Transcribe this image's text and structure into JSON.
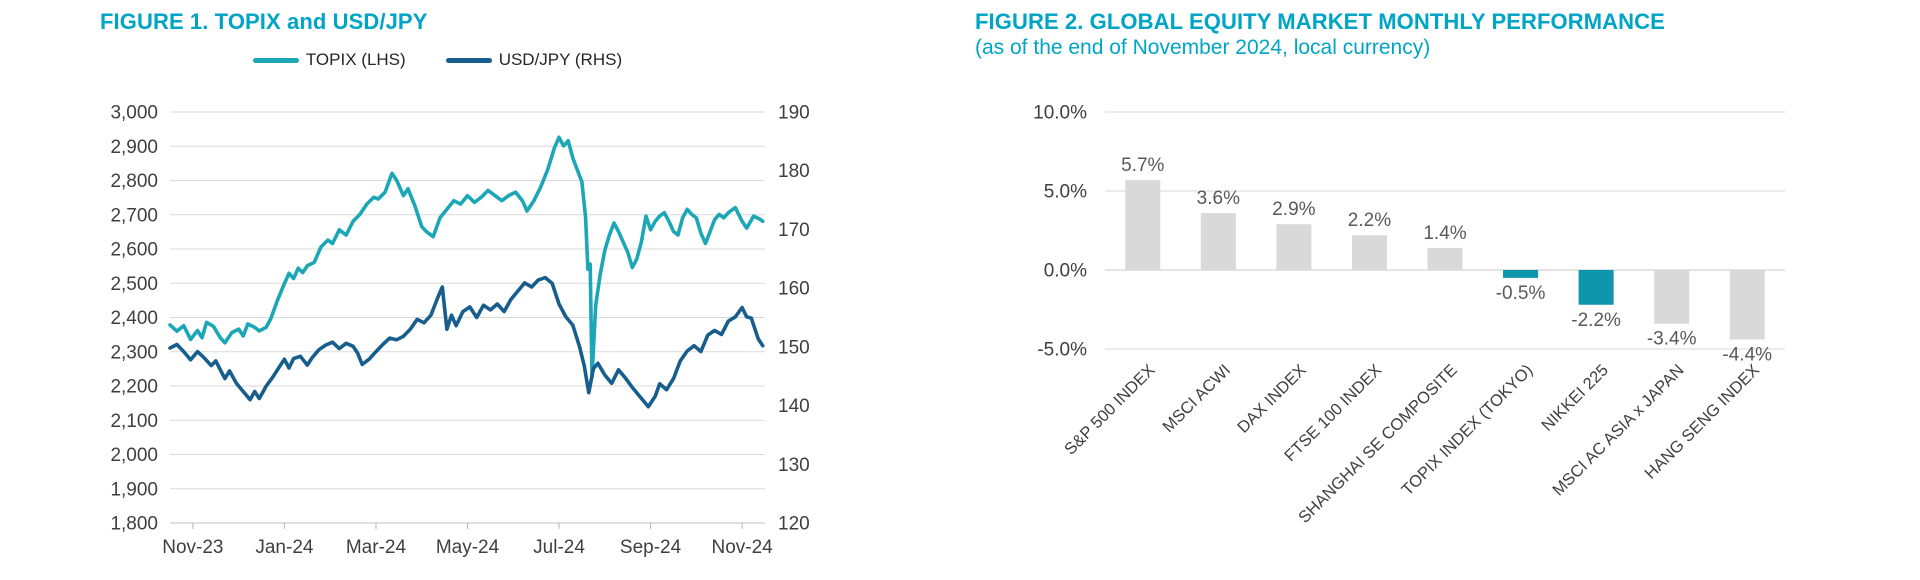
{
  "figure1": {
    "title": "FIGURE 1. TOPIX and USD/JPY",
    "legend": [
      {
        "label": "TOPIX (LHS)",
        "color": "#1CA7B6"
      },
      {
        "label": "USD/JPY (RHS)",
        "color": "#175E8D"
      }
    ]
  },
  "figure2": {
    "title": "FIGURE 2. GLOBAL EQUITY MARKET MONTHLY PERFORMANCE",
    "subtitle": "(as of the end of November 2024, local currency)"
  },
  "colors": {
    "accent_title_teal": "#00A5C6",
    "topix_line": "#1CA7B6",
    "usdjpy_line": "#175E8D",
    "bar_gray": "#D9D9D9",
    "bar_teal": "#0E96AC",
    "grid": "#DADADA",
    "axis_line": "#C2C2C2",
    "tick_text": "#3F3F3F",
    "value_label_text": "#595959"
  },
  "chart_data": [
    {
      "type": "line",
      "title": "FIGURE 1. TOPIX and USD/JPY",
      "grid": true,
      "legend_position": "top",
      "x_domain": [
        0,
        13
      ],
      "x_ticks": [
        "Nov-23",
        "Jan-24",
        "Mar-24",
        "May-24",
        "Jul-24",
        "Sep-24",
        "Nov-24"
      ],
      "x_tick_positions": [
        0.5,
        2.5,
        4.5,
        6.5,
        8.5,
        10.5,
        12.5
      ],
      "left_axis": {
        "name": "TOPIX",
        "min": 1800,
        "max": 3000,
        "step": 100,
        "tick_labels": [
          "1,800",
          "1,900",
          "2,000",
          "2,100",
          "2,200",
          "2,300",
          "2,400",
          "2,500",
          "2,600",
          "2,700",
          "2,800",
          "2,900",
          "3,000"
        ]
      },
      "right_axis": {
        "name": "USD/JPY",
        "min": 120,
        "max": 190,
        "step": 10,
        "tick_labels": [
          "120",
          "130",
          "140",
          "150",
          "160",
          "170",
          "180",
          "190"
        ]
      },
      "series": [
        {
          "name": "TOPIX (LHS)",
          "axis": "left",
          "color": "#1CA7B6",
          "points": [
            [
              0,
              2378
            ],
            [
              0.15,
              2360
            ],
            [
              0.3,
              2376
            ],
            [
              0.45,
              2336
            ],
            [
              0.6,
              2362
            ],
            [
              0.7,
              2341
            ],
            [
              0.8,
              2386
            ],
            [
              0.95,
              2374
            ],
            [
              1.1,
              2341
            ],
            [
              1.2,
              2326
            ],
            [
              1.35,
              2356
            ],
            [
              1.5,
              2366
            ],
            [
              1.6,
              2346
            ],
            [
              1.7,
              2381
            ],
            [
              1.85,
              2371
            ],
            [
              1.95,
              2361
            ],
            [
              2.1,
              2371
            ],
            [
              2.2,
              2396
            ],
            [
              2.35,
              2451
            ],
            [
              2.5,
              2499
            ],
            [
              2.6,
              2529
            ],
            [
              2.7,
              2514
            ],
            [
              2.8,
              2544
            ],
            [
              2.9,
              2531
            ],
            [
              3.0,
              2551
            ],
            [
              3.15,
              2561
            ],
            [
              3.3,
              2606
            ],
            [
              3.45,
              2626
            ],
            [
              3.55,
              2616
            ],
            [
              3.7,
              2656
            ],
            [
              3.85,
              2641
            ],
            [
              4.0,
              2681
            ],
            [
              4.15,
              2701
            ],
            [
              4.3,
              2731
            ],
            [
              4.45,
              2751
            ],
            [
              4.55,
              2746
            ],
            [
              4.7,
              2766
            ],
            [
              4.85,
              2821
            ],
            [
              4.95,
              2801
            ],
            [
              5.1,
              2756
            ],
            [
              5.2,
              2776
            ],
            [
              5.35,
              2726
            ],
            [
              5.5,
              2666
            ],
            [
              5.6,
              2651
            ],
            [
              5.75,
              2636
            ],
            [
              5.9,
              2691
            ],
            [
              6.05,
              2716
            ],
            [
              6.2,
              2741
            ],
            [
              6.35,
              2731
            ],
            [
              6.5,
              2756
            ],
            [
              6.65,
              2736
            ],
            [
              6.8,
              2751
            ],
            [
              6.95,
              2771
            ],
            [
              7.1,
              2756
            ],
            [
              7.25,
              2741
            ],
            [
              7.4,
              2756
            ],
            [
              7.55,
              2766
            ],
            [
              7.7,
              2741
            ],
            [
              7.8,
              2711
            ],
            [
              7.95,
              2741
            ],
            [
              8.1,
              2781
            ],
            [
              8.25,
              2831
            ],
            [
              8.4,
              2896
            ],
            [
              8.5,
              2926
            ],
            [
              8.6,
              2901
            ],
            [
              8.7,
              2916
            ],
            [
              8.8,
              2866
            ],
            [
              8.9,
              2831
            ],
            [
              9.0,
              2796
            ],
            [
              9.08,
              2691
            ],
            [
              9.13,
              2541
            ],
            [
              9.18,
              2556
            ],
            [
              9.22,
              2227
            ],
            [
              9.3,
              2436
            ],
            [
              9.4,
              2526
            ],
            [
              9.5,
              2596
            ],
            [
              9.6,
              2641
            ],
            [
              9.7,
              2676
            ],
            [
              9.8,
              2651
            ],
            [
              9.9,
              2621
            ],
            [
              10.0,
              2591
            ],
            [
              10.1,
              2546
            ],
            [
              10.2,
              2571
            ],
            [
              10.3,
              2621
            ],
            [
              10.4,
              2696
            ],
            [
              10.5,
              2656
            ],
            [
              10.6,
              2681
            ],
            [
              10.7,
              2696
            ],
            [
              10.8,
              2706
            ],
            [
              10.9,
              2681
            ],
            [
              11.0,
              2651
            ],
            [
              11.1,
              2641
            ],
            [
              11.2,
              2691
            ],
            [
              11.3,
              2716
            ],
            [
              11.4,
              2701
            ],
            [
              11.5,
              2691
            ],
            [
              11.6,
              2646
            ],
            [
              11.7,
              2616
            ],
            [
              11.8,
              2651
            ],
            [
              11.9,
              2686
            ],
            [
              12.0,
              2701
            ],
            [
              12.1,
              2691
            ],
            [
              12.2,
              2706
            ],
            [
              12.35,
              2721
            ],
            [
              12.5,
              2681
            ],
            [
              12.6,
              2661
            ],
            [
              12.75,
              2696
            ],
            [
              12.9,
              2686
            ],
            [
              12.95,
              2681
            ]
          ]
        },
        {
          "name": "USD/JPY (RHS)",
          "axis": "right",
          "color": "#175E8D",
          "points": [
            [
              0,
              149.8
            ],
            [
              0.15,
              150.4
            ],
            [
              0.3,
              149.2
            ],
            [
              0.45,
              147.8
            ],
            [
              0.6,
              149.2
            ],
            [
              0.75,
              148.1
            ],
            [
              0.9,
              146.8
            ],
            [
              1.0,
              147.6
            ],
            [
              1.1,
              146.1
            ],
            [
              1.2,
              144.6
            ],
            [
              1.3,
              145.9
            ],
            [
              1.45,
              143.8
            ],
            [
              1.6,
              142.4
            ],
            [
              1.75,
              141.0
            ],
            [
              1.85,
              142.4
            ],
            [
              1.95,
              141.2
            ],
            [
              2.1,
              143.3
            ],
            [
              2.25,
              144.9
            ],
            [
              2.4,
              146.7
            ],
            [
              2.5,
              147.9
            ],
            [
              2.6,
              146.4
            ],
            [
              2.7,
              148.0
            ],
            [
              2.85,
              148.4
            ],
            [
              3.0,
              146.9
            ],
            [
              3.1,
              148.1
            ],
            [
              3.25,
              149.5
            ],
            [
              3.4,
              150.3
            ],
            [
              3.55,
              150.8
            ],
            [
              3.7,
              149.7
            ],
            [
              3.85,
              150.6
            ],
            [
              4.0,
              150.1
            ],
            [
              4.1,
              148.9
            ],
            [
              4.2,
              147.0
            ],
            [
              4.35,
              147.9
            ],
            [
              4.5,
              149.2
            ],
            [
              4.65,
              150.4
            ],
            [
              4.8,
              151.5
            ],
            [
              4.95,
              151.2
            ],
            [
              5.1,
              151.8
            ],
            [
              5.25,
              153.0
            ],
            [
              5.4,
              154.7
            ],
            [
              5.55,
              154.1
            ],
            [
              5.7,
              155.4
            ],
            [
              5.85,
              158.4
            ],
            [
              5.95,
              160.2
            ],
            [
              6.05,
              153.0
            ],
            [
              6.15,
              155.4
            ],
            [
              6.25,
              153.6
            ],
            [
              6.4,
              156.0
            ],
            [
              6.55,
              156.8
            ],
            [
              6.7,
              155.0
            ],
            [
              6.85,
              157.1
            ],
            [
              7.0,
              156.3
            ],
            [
              7.15,
              157.3
            ],
            [
              7.3,
              156.0
            ],
            [
              7.45,
              158.1
            ],
            [
              7.6,
              159.5
            ],
            [
              7.75,
              160.9
            ],
            [
              7.9,
              160.2
            ],
            [
              8.05,
              161.4
            ],
            [
              8.2,
              161.8
            ],
            [
              8.35,
              160.8
            ],
            [
              8.5,
              157.3
            ],
            [
              8.65,
              155.1
            ],
            [
              8.8,
              153.7
            ],
            [
              8.95,
              150.0
            ],
            [
              9.05,
              146.8
            ],
            [
              9.15,
              142.2
            ],
            [
              9.25,
              146.3
            ],
            [
              9.35,
              147.2
            ],
            [
              9.5,
              145.2
            ],
            [
              9.65,
              143.8
            ],
            [
              9.8,
              146.1
            ],
            [
              9.95,
              144.7
            ],
            [
              10.1,
              143.1
            ],
            [
              10.25,
              141.7
            ],
            [
              10.45,
              139.8
            ],
            [
              10.6,
              141.6
            ],
            [
              10.7,
              143.7
            ],
            [
              10.85,
              142.7
            ],
            [
              11.0,
              144.6
            ],
            [
              11.15,
              147.6
            ],
            [
              11.3,
              149.3
            ],
            [
              11.45,
              150.2
            ],
            [
              11.6,
              149.2
            ],
            [
              11.75,
              152.0
            ],
            [
              11.9,
              152.8
            ],
            [
              12.05,
              152.1
            ],
            [
              12.2,
              154.4
            ],
            [
              12.35,
              155.1
            ],
            [
              12.5,
              156.7
            ],
            [
              12.6,
              155.1
            ],
            [
              12.7,
              154.9
            ],
            [
              12.85,
              151.4
            ],
            [
              12.95,
              150.2
            ]
          ]
        }
      ]
    },
    {
      "type": "bar",
      "title": "FIGURE 2. GLOBAL EQUITY MARKET MONTHLY PERFORMANCE",
      "subtitle": "(as of the end of November 2024, local currency)",
      "categories": [
        "S&P 500 INDEX",
        "MSCI ACWI",
        "DAX INDEX",
        "FTSE 100 INDEX",
        "SHANGHAI SE COMPOSITE",
        "TOPIX INDEX (TOKYO)",
        "NIKKEI 225",
        "MSCI AC ASIA x JAPAN",
        "HANG SENG INDEX"
      ],
      "values": [
        5.7,
        3.6,
        2.9,
        2.2,
        1.4,
        -0.5,
        -2.2,
        -3.4,
        -4.4
      ],
      "value_labels": [
        "5.7%",
        "3.6%",
        "2.9%",
        "2.2%",
        "1.4%",
        "-0.5%",
        "-2.2%",
        "-3.4%",
        "-4.4%"
      ],
      "bar_colors": [
        "#D9D9D9",
        "#D9D9D9",
        "#D9D9D9",
        "#D9D9D9",
        "#D9D9D9",
        "#0E96AC",
        "#0E96AC",
        "#D9D9D9",
        "#D9D9D9"
      ],
      "ylim": [
        -5,
        10
      ],
      "yticks": [
        {
          "value": 10,
          "label": "10.0%"
        },
        {
          "value": 5,
          "label": "5.0%"
        },
        {
          "value": 0,
          "label": "0.0%"
        },
        {
          "value": -5,
          "label": "-5.0%"
        }
      ],
      "grid": true,
      "xlabel": "",
      "ylabel": ""
    }
  ]
}
